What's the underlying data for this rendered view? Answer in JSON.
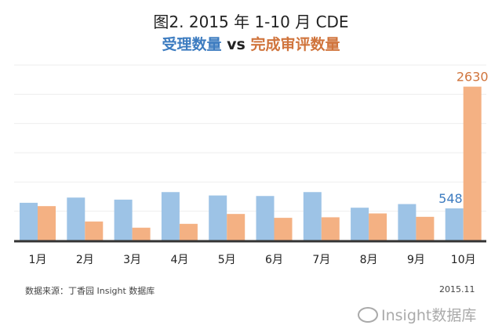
{
  "chart_data": {
    "type": "bar",
    "title": "图2. 2015 年 1-10 月 CDE",
    "subtitle": {
      "part1": "受理数量",
      "vs": " vs ",
      "part2": "完成审评数量"
    },
    "categories": [
      "1月",
      "2月",
      "3月",
      "4月",
      "5月",
      "6月",
      "7月",
      "8月",
      "9月",
      "10月"
    ],
    "series": [
      {
        "name": "受理数量",
        "color": "#9dc3e6",
        "values": [
          644,
          733,
          698,
          827,
          769,
          760,
          827,
          560,
          622,
          548
        ]
      },
      {
        "name": "完成审评数量",
        "color": "#f4b183",
        "values": [
          587,
          324,
          218,
          284,
          453,
          387,
          396,
          462,
          404,
          2630
        ]
      }
    ],
    "data_labels": [
      {
        "series": 0,
        "index": 9,
        "text": "548",
        "color": "#3d7cc0"
      },
      {
        "series": 1,
        "index": 9,
        "text": "2630",
        "color": "#d0743c"
      }
    ],
    "ylim": [
      0,
      3000
    ],
    "grid_step": 500,
    "grid": true
  },
  "footer": {
    "source": "数据来源：丁香园 Insight 数据库",
    "date": "2015.11"
  },
  "logo": {
    "text": "Insight数据库"
  }
}
